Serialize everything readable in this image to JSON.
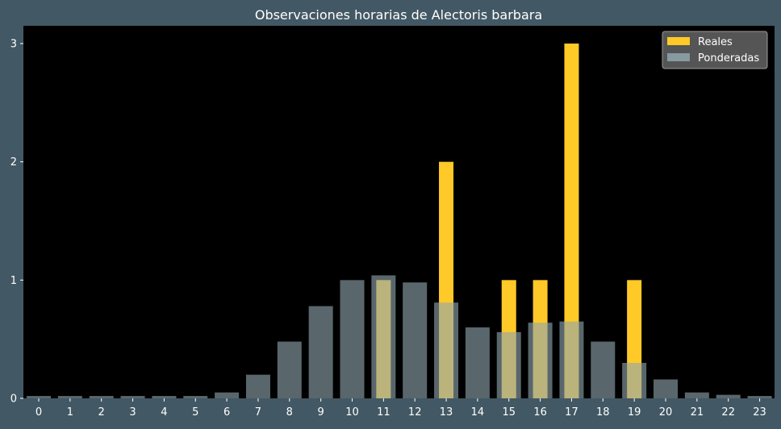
{
  "chart_data": {
    "type": "bar",
    "title": "Observaciones horarias de Alectoris barbara",
    "xlabel": "",
    "ylabel": "",
    "ylim": [
      0,
      3.15
    ],
    "yticks": [
      0,
      1,
      2,
      3
    ],
    "categories": [
      "0",
      "1",
      "2",
      "3",
      "4",
      "5",
      "6",
      "7",
      "8",
      "9",
      "10",
      "11",
      "12",
      "13",
      "14",
      "15",
      "16",
      "17",
      "18",
      "19",
      "20",
      "21",
      "22",
      "23"
    ],
    "series": [
      {
        "name": "Reales",
        "color": "#FFC928",
        "values": [
          0,
          0,
          0,
          0,
          0,
          0,
          0,
          0,
          0,
          0,
          0,
          1,
          0,
          2,
          0,
          1,
          1,
          3,
          0,
          1,
          0,
          0,
          0,
          0
        ]
      },
      {
        "name": "Ponderadas",
        "color": "#8FA7AE",
        "values": [
          0.02,
          0.02,
          0.02,
          0.02,
          0.02,
          0.02,
          0.05,
          0.2,
          0.48,
          0.78,
          1.0,
          1.04,
          0.98,
          0.81,
          0.6,
          0.56,
          0.64,
          0.65,
          0.48,
          0.3,
          0.16,
          0.05,
          0.03,
          0.02
        ]
      }
    ],
    "legend_position": "top-right",
    "grid": false,
    "colors": {
      "page_background": "#425864",
      "plot_background": "#000000",
      "text": "#FFFFFF"
    }
  }
}
